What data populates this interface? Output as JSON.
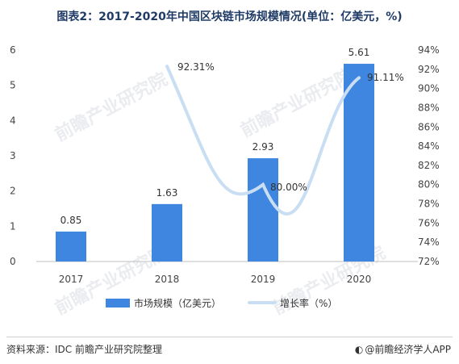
{
  "page": {
    "title": "图表2：2017-2020年中国区块链市场规模情况(单位：亿美元，%)",
    "source": "资料来源：IDC 前瞻产业研究院整理",
    "brand": "@前瞻经济学人APP",
    "brand_icon": "qianzhan-logo-icon",
    "watermark": "前瞻产业研究院"
  },
  "chart_data": {
    "type": "bar",
    "categories": [
      "2017",
      "2018",
      "2019",
      "2020"
    ],
    "series": [
      {
        "name": "市场规模（亿美元）",
        "type": "bar",
        "axis": "left",
        "color": "#3f86e0",
        "values": [
          0.85,
          1.63,
          2.93,
          5.61
        ],
        "labels": [
          "0.85",
          "1.63",
          "2.93",
          "5.61"
        ]
      },
      {
        "name": "增长率（%）",
        "type": "line",
        "axis": "right",
        "color": "#c9def3",
        "smooth": true,
        "values": [
          null,
          92.31,
          80.0,
          91.11
        ],
        "labels": [
          "",
          "92.31%",
          "80.00%",
          "91.11%"
        ]
      }
    ],
    "y_left": {
      "min": 0,
      "max": 6,
      "ticks": [
        "0",
        "1",
        "2",
        "3",
        "4",
        "5",
        "6"
      ]
    },
    "y_right": {
      "min": 72,
      "max": 94,
      "ticks": [
        "72%",
        "74%",
        "76%",
        "78%",
        "80%",
        "82%",
        "84%",
        "86%",
        "88%",
        "90%",
        "92%",
        "94%"
      ]
    },
    "legend": "bottom",
    "grid": false
  }
}
